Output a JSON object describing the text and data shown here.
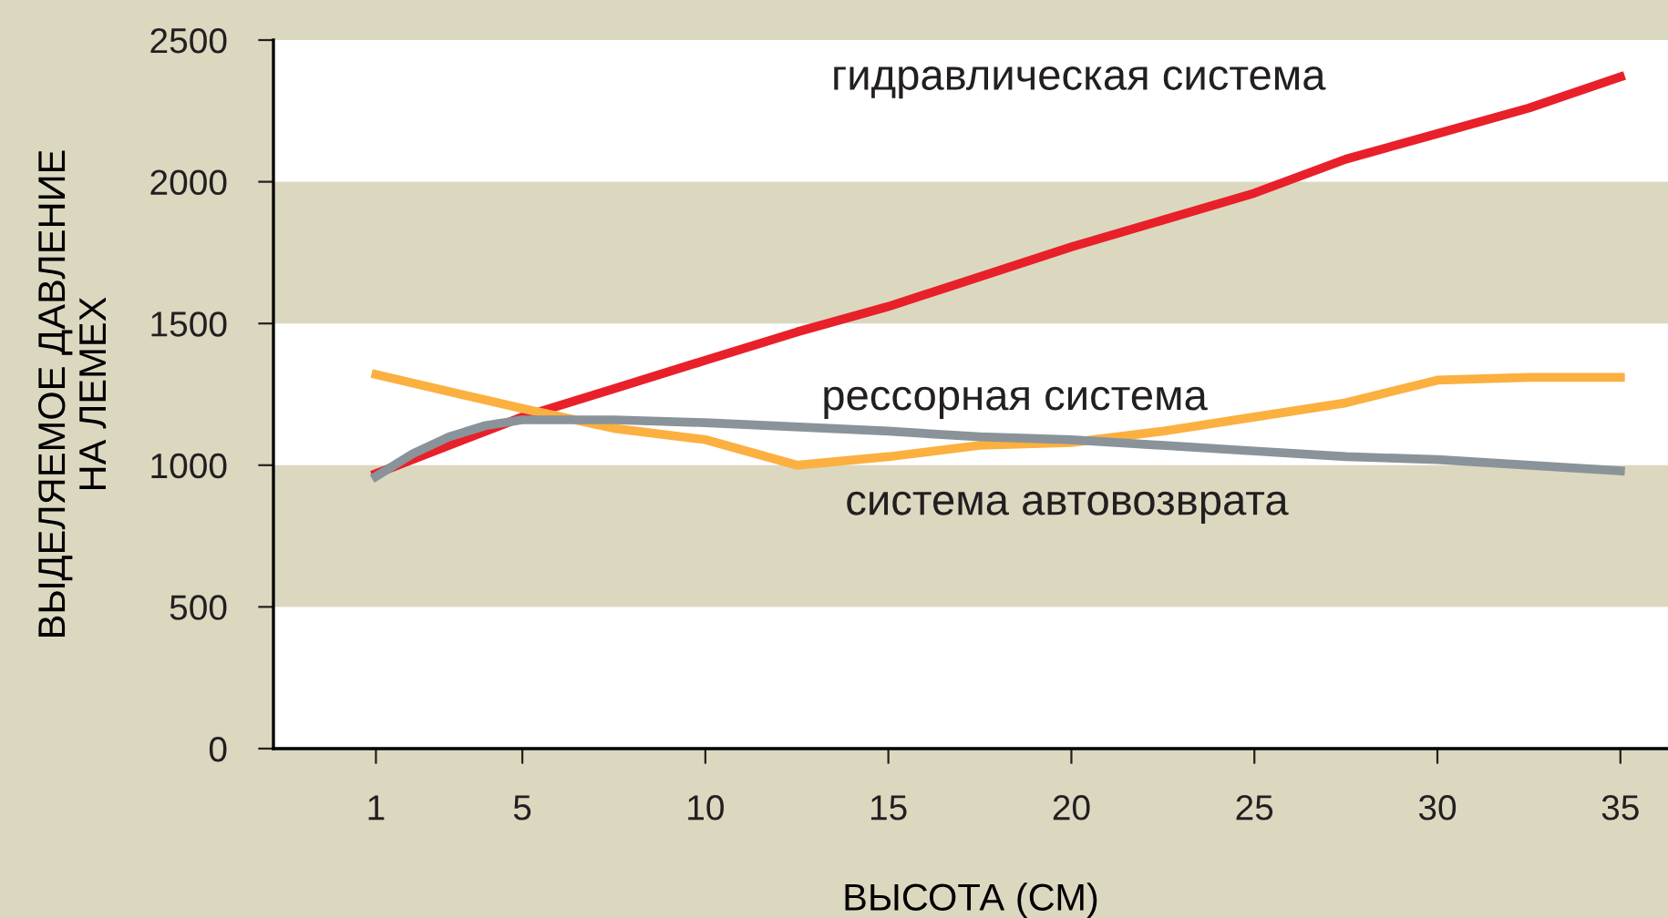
{
  "chart_data": {
    "type": "line",
    "xlabel": "ВЫСОТА (СМ)",
    "ylabel": "ВЫДЕЛЯЕМОЕ ДАВЛЕНИЕ\nНА ЛЕМЕХ",
    "xlim": [
      -1.8,
      36.3
    ],
    "xticks": [
      1,
      5,
      10,
      15,
      20,
      25,
      30,
      35
    ],
    "ylim": [
      0,
      2500
    ],
    "yticks": [
      0,
      500,
      1000,
      1500,
      2000,
      2500
    ],
    "grid": false,
    "legend": false,
    "marker": "none",
    "line_style": "solid",
    "bands": [
      {
        "axis": "y",
        "from": 0,
        "to": 500,
        "color": "#ffffff"
      },
      {
        "axis": "y",
        "from": 1000,
        "to": 1500,
        "color": "#ffffff"
      },
      {
        "axis": "y",
        "from": 2000,
        "to": 2500,
        "color": "#ffffff"
      }
    ],
    "series": [
      {
        "name": "гидравлическая система",
        "color": "#e8202a",
        "x": [
          1,
          5,
          7.5,
          10,
          12.5,
          15,
          20,
          25,
          27.5,
          30,
          32.5,
          35
        ],
        "values": [
          970,
          1170,
          1270,
          1370,
          1470,
          1560,
          1770,
          1960,
          2080,
          2170,
          2260,
          2370
        ]
      },
      {
        "name": "рессорная система",
        "color": "#fbb040",
        "x": [
          1,
          5,
          7.5,
          10,
          12.5,
          15,
          17.5,
          20,
          22.5,
          25,
          27.5,
          30,
          32.5,
          35
        ],
        "values": [
          1320,
          1200,
          1130,
          1090,
          1000,
          1030,
          1070,
          1080,
          1120,
          1170,
          1220,
          1300,
          1310,
          1310
        ]
      },
      {
        "name": "система автовозврата",
        "color": "#8a9399",
        "x": [
          1,
          2,
          3,
          4,
          5,
          7.5,
          10,
          15,
          17.5,
          20,
          25,
          27.5,
          30,
          35
        ],
        "values": [
          960,
          1040,
          1100,
          1140,
          1160,
          1160,
          1150,
          1120,
          1100,
          1090,
          1050,
          1030,
          1020,
          980
        ]
      }
    ]
  }
}
